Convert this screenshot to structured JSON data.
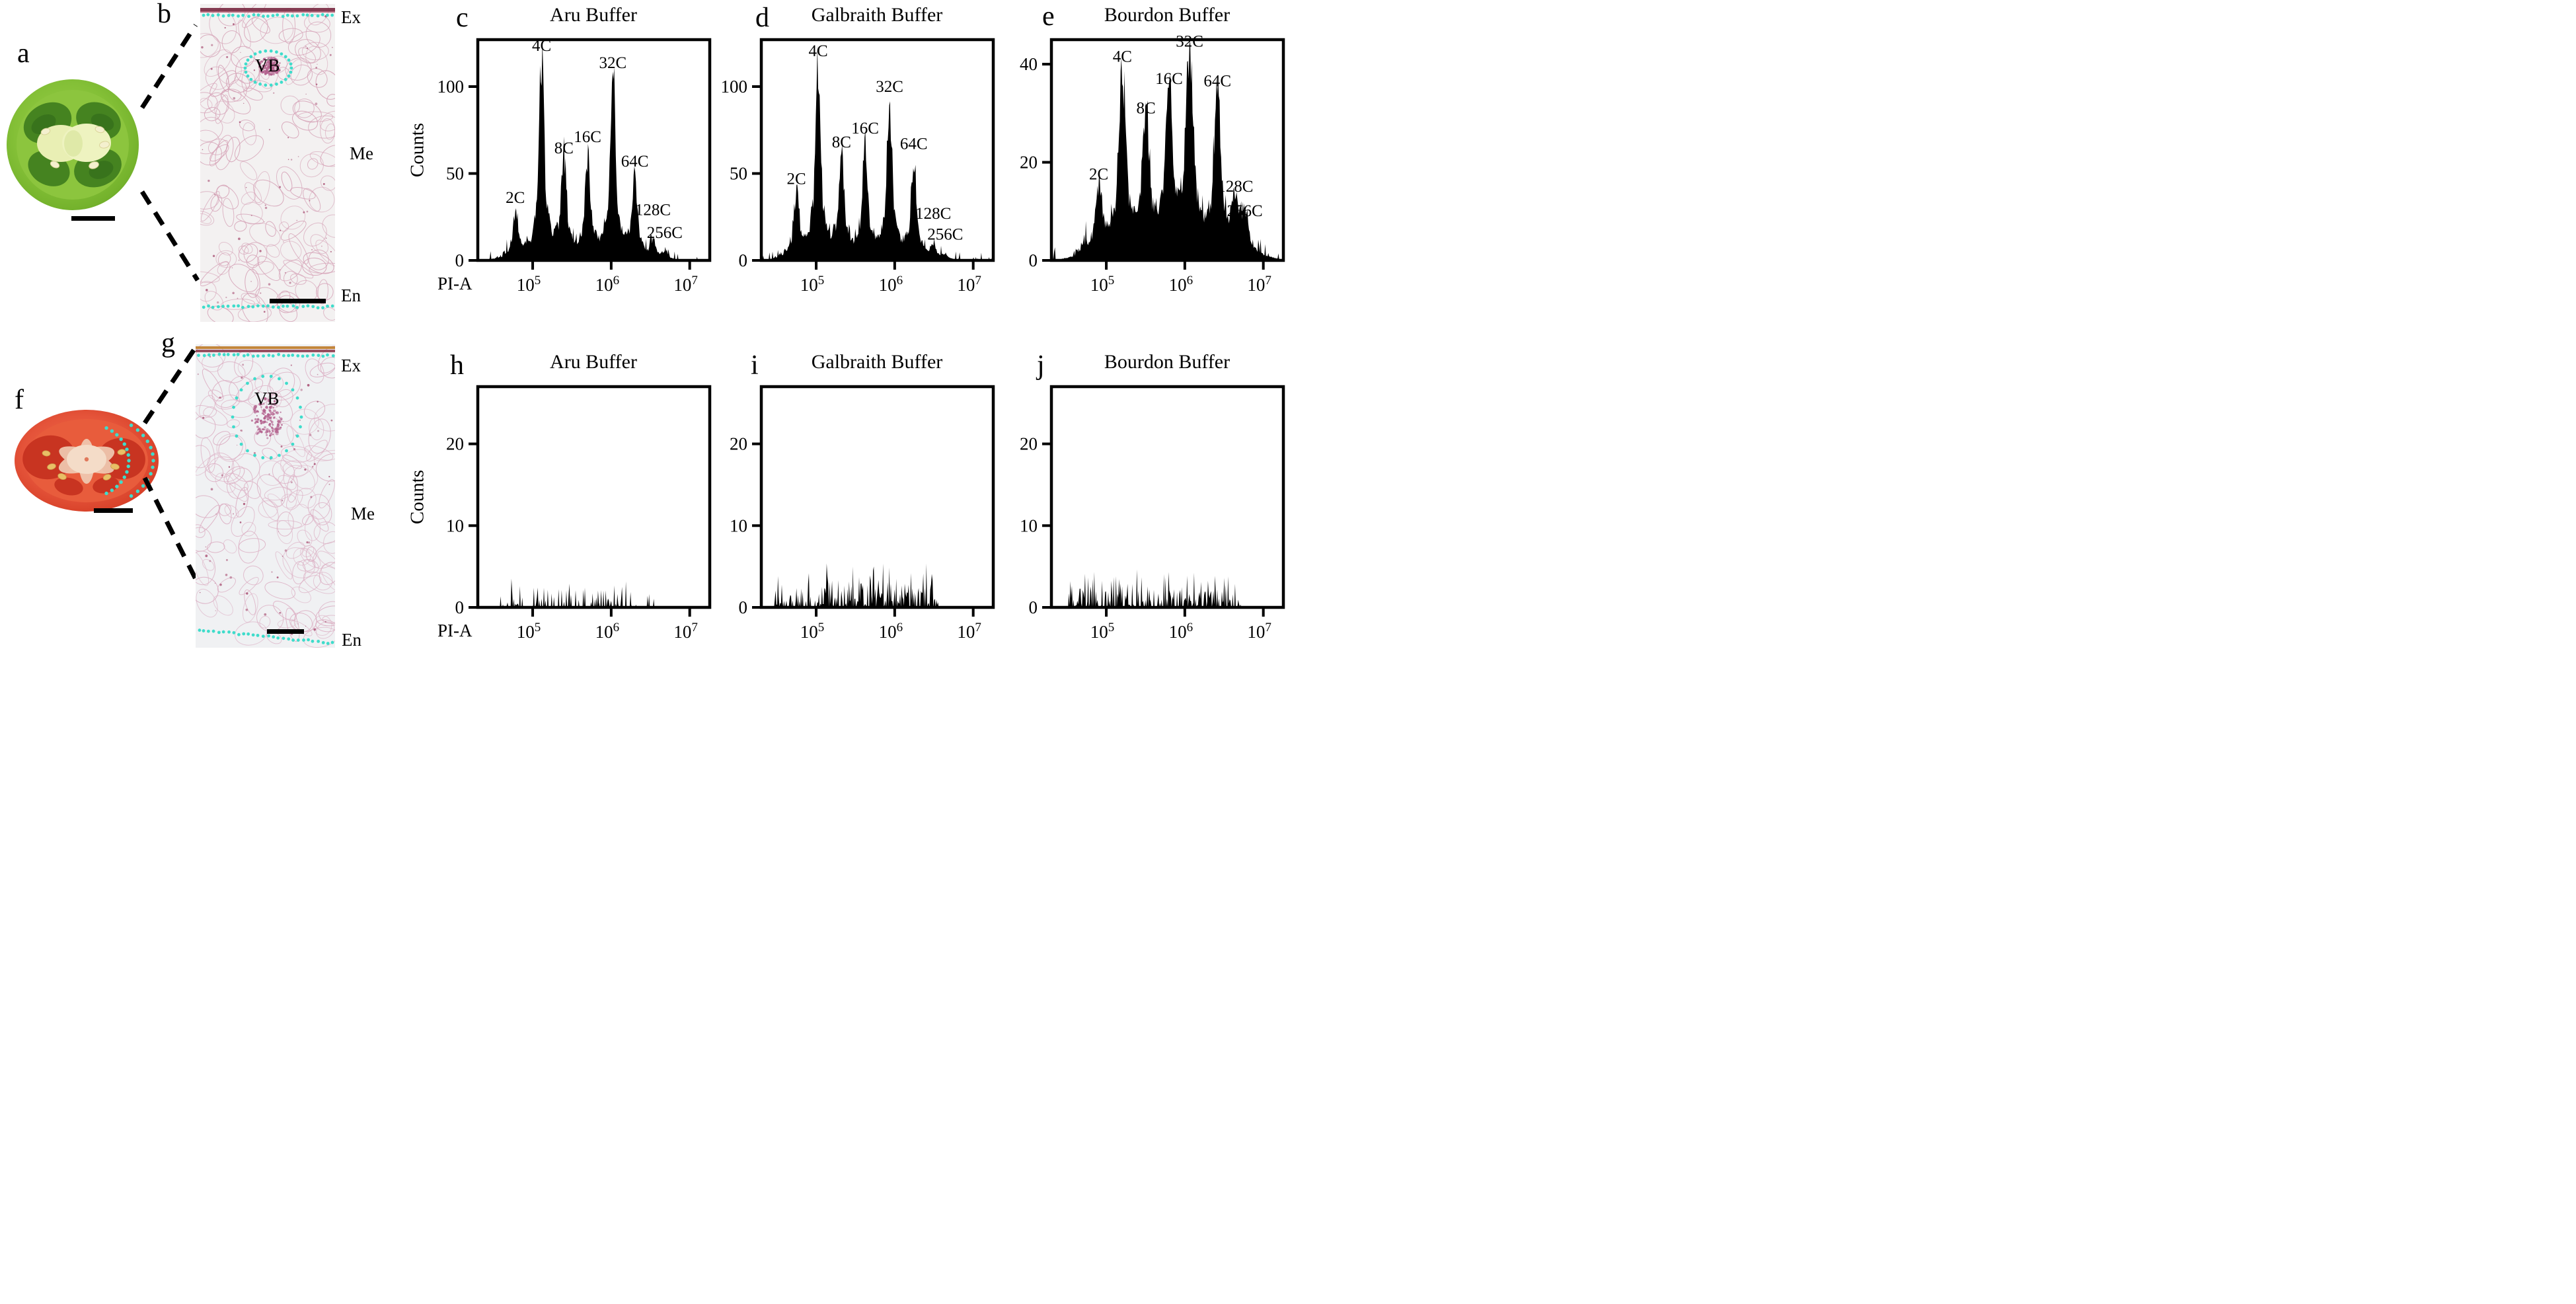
{
  "colors": {
    "accent_cyan": "#3fdccb",
    "histogram_fill": "#000000",
    "axis": "#000000",
    "micrograph_bg": "#f2f0f1",
    "cell_wall_pink": "#d6a4b8",
    "vascular_dot": "#b3628e",
    "exocarp_band": "#7b2b43",
    "cuticle_orange": "#c08030",
    "tomato_green": "#7cb82f",
    "tomato_green_dark": "#3c7a1d",
    "tomato_green_pale": "#e9efb4",
    "tomato_red": "#e2503a",
    "tomato_red_dark": "#c22c1c",
    "tomato_red_pale": "#f4dcc8",
    "seed_cream": "#f4f0ce",
    "seed_yellow": "#e9bf66"
  },
  "panels": {
    "a": {
      "letter": "a"
    },
    "b": {
      "letter": "b",
      "labels": {
        "ex": "Ex",
        "me": "Me",
        "en": "En",
        "vb": "VB"
      }
    },
    "f": {
      "letter": "f"
    },
    "g": {
      "letter": "g",
      "labels": {
        "ex": "Ex",
        "me": "Me",
        "en": "En",
        "vb": "VB"
      }
    }
  },
  "chart_data": [
    {
      "panel": "c",
      "type": "area",
      "title": "Aru Buffer",
      "xlabel": "PI-A",
      "ylabel": "Counts",
      "xscale": "log",
      "xlim": [
        20000,
        18000000
      ],
      "xticks": [
        100000,
        1000000,
        10000000
      ],
      "ylim": [
        0,
        127
      ],
      "yticks": [
        0,
        50,
        100
      ],
      "grid": false,
      "peaks": [
        {
          "label": "2C",
          "x": 60000,
          "count": 25,
          "label_y": 33
        },
        {
          "label": "4C",
          "x": 130000,
          "count": 116
        },
        {
          "label": "8C",
          "x": 250000,
          "count": 57
        },
        {
          "label": "16C",
          "x": 500000,
          "count": 55,
          "label_y": 68
        },
        {
          "label": "32C",
          "x": 1050000,
          "count": 106
        },
        {
          "label": "64C",
          "x": 2000000,
          "count": 45,
          "label_y": 54
        },
        {
          "label": "128C",
          "x": 3400000,
          "count": 9,
          "label_y": 26
        },
        {
          "label": "256C",
          "x": 4800000,
          "count": 4,
          "label_y": 13
        }
      ],
      "noise": {
        "range": [
          30000,
          5200000
        ],
        "base": 7
      },
      "spread": 1,
      "seed": 7
    },
    {
      "panel": "d",
      "type": "area",
      "title": "Galbraith Buffer",
      "xlabel": "",
      "ylabel": "",
      "xscale": "log",
      "xlim": [
        20000,
        18000000
      ],
      "xticks": [
        100000,
        1000000,
        10000000
      ],
      "ylim": [
        0,
        127
      ],
      "yticks": [
        0,
        50,
        100
      ],
      "grid": false,
      "peaks": [
        {
          "label": "2C",
          "x": 56000,
          "count": 35,
          "label_y": 44
        },
        {
          "label": "4C",
          "x": 106000,
          "count": 113
        },
        {
          "label": "8C",
          "x": 210000,
          "count": 57,
          "label_y": 65
        },
        {
          "label": "16C",
          "x": 420000,
          "count": 62,
          "label_y": 73
        },
        {
          "label": "32C",
          "x": 860000,
          "count": 88,
          "label_y": 97
        },
        {
          "label": "64C",
          "x": 1750000,
          "count": 55,
          "label_y": 64
        },
        {
          "label": "128C",
          "x": 3100000,
          "count": 7,
          "label_y": 24
        },
        {
          "label": "256C",
          "x": 4400000,
          "count": 3,
          "label_y": 12
        }
      ],
      "noise": {
        "range": [
          26000,
          4600000
        ],
        "base": 7
      },
      "spread": 1,
      "seed": 8
    },
    {
      "panel": "e",
      "type": "area",
      "title": "Bourdon Buffer",
      "xlabel": "",
      "ylabel": "",
      "xscale": "log",
      "xlim": [
        20000,
        18000000
      ],
      "xticks": [
        100000,
        1000000,
        10000000
      ],
      "ylim": [
        0,
        45
      ],
      "yticks": [
        0,
        20,
        40
      ],
      "grid": false,
      "peaks": [
        {
          "label": "2C",
          "x": 80000,
          "count": 13,
          "label_y": 16.5
        },
        {
          "label": "4C",
          "x": 160000,
          "count": 37,
          "label_y": 40.5
        },
        {
          "label": "8C",
          "x": 320000,
          "count": 26,
          "label_y": 30
        },
        {
          "label": "16C",
          "x": 630000,
          "count": 31,
          "label_y": 36
        },
        {
          "label": "32C",
          "x": 1150000,
          "count": 42
        },
        {
          "label": "64C",
          "x": 2600000,
          "count": 31,
          "label_y": 35.5
        },
        {
          "label": "128C",
          "x": 4400000,
          "count": 10,
          "label_y": 14
        },
        {
          "label": "256C",
          "x": 5800000,
          "count": 7,
          "label_y": 9
        }
      ],
      "noise": {
        "range": [
          32000,
          7500000
        ],
        "base": 5
      },
      "spread": 1.4,
      "seed": 9
    },
    {
      "panel": "h",
      "type": "area",
      "title": "Aru Buffer",
      "xlabel": "PI-A",
      "ylabel": "Counts",
      "xscale": "log",
      "xlim": [
        20000,
        18000000
      ],
      "xticks": [
        100000,
        1000000,
        10000000
      ],
      "ylim": [
        0,
        27
      ],
      "yticks": [
        0,
        10,
        20
      ],
      "grid": false,
      "peaks": [],
      "noise": {
        "range": [
          32000,
          3800000
        ],
        "base": 1.6,
        "max": 3.2,
        "density": 0.4
      },
      "spread": 1,
      "seed": 10
    },
    {
      "panel": "i",
      "type": "area",
      "title": "Galbraith Buffer",
      "xlabel": "",
      "ylabel": "",
      "xscale": "log",
      "xlim": [
        20000,
        18000000
      ],
      "xticks": [
        100000,
        1000000,
        10000000
      ],
      "ylim": [
        0,
        27
      ],
      "yticks": [
        0,
        10,
        20
      ],
      "grid": false,
      "peaks": [],
      "noise": {
        "range": [
          28000,
          3700000
        ],
        "base": 2.4,
        "max": 5.2,
        "density": 0.72
      },
      "spread": 1,
      "seed": 11
    },
    {
      "panel": "j",
      "type": "area",
      "title": "Bourdon Buffer",
      "xlabel": "",
      "ylabel": "",
      "xscale": "log",
      "xlim": [
        20000,
        18000000
      ],
      "xticks": [
        100000,
        1000000,
        10000000
      ],
      "ylim": [
        0,
        27
      ],
      "yticks": [
        0,
        10,
        20
      ],
      "grid": false,
      "peaks": [],
      "noise": {
        "range": [
          30000,
          5200000
        ],
        "base": 2.2,
        "max": 4.6,
        "density": 0.72
      },
      "spread": 1,
      "seed": 12
    }
  ]
}
